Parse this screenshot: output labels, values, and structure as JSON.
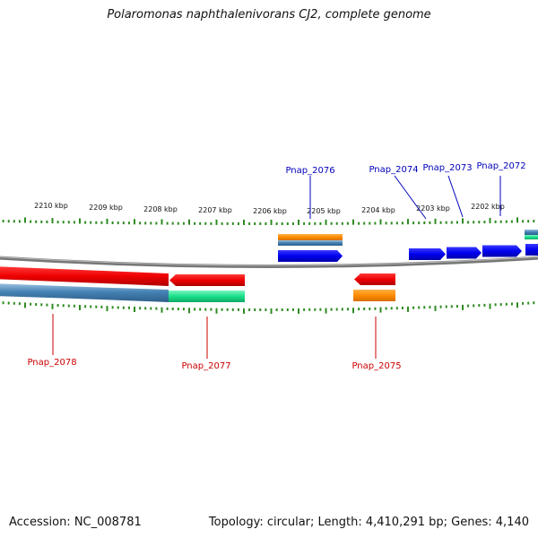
{
  "title": "Polaromonas naphthalenivorans CJ2, complete genome",
  "colors": {
    "forward_gene": "#0000ee",
    "reverse_gene": "#ee0000",
    "label_forward": "#0000bb",
    "label_reverse": "#cc0000",
    "tick": "#2e8b22",
    "backbone": "#777777",
    "orange_feature": "#ff8c00",
    "steelblue_feature": "#4682b4",
    "green_feature": "#18e08a"
  },
  "scale": {
    "unit": "kbp",
    "ticks": [
      {
        "label": "2202 kbp"
      },
      {
        "label": "2203 kbp"
      },
      {
        "label": "2204 kbp"
      },
      {
        "label": "2205 kbp"
      },
      {
        "label": "2206 kbp"
      },
      {
        "label": "2207 kbp"
      },
      {
        "label": "2208 kbp"
      },
      {
        "label": "2209 kbp"
      },
      {
        "label": "2210 kbp"
      }
    ]
  },
  "gene_labels": [
    {
      "name": "Pnap_2072",
      "strand": "+"
    },
    {
      "name": "Pnap_2073",
      "strand": "+"
    },
    {
      "name": "Pnap_2074",
      "strand": "+"
    },
    {
      "name": "Pnap_2075",
      "strand": "-"
    },
    {
      "name": "Pnap_2076",
      "strand": "+"
    },
    {
      "name": "Pnap_2077",
      "strand": "-"
    },
    {
      "name": "Pnap_2078",
      "strand": "-"
    }
  ],
  "footer": {
    "accession": "Accession: NC_008781",
    "topology": "Topology: circular; Length: 4,410,291 bp; Genes: 4,140"
  }
}
